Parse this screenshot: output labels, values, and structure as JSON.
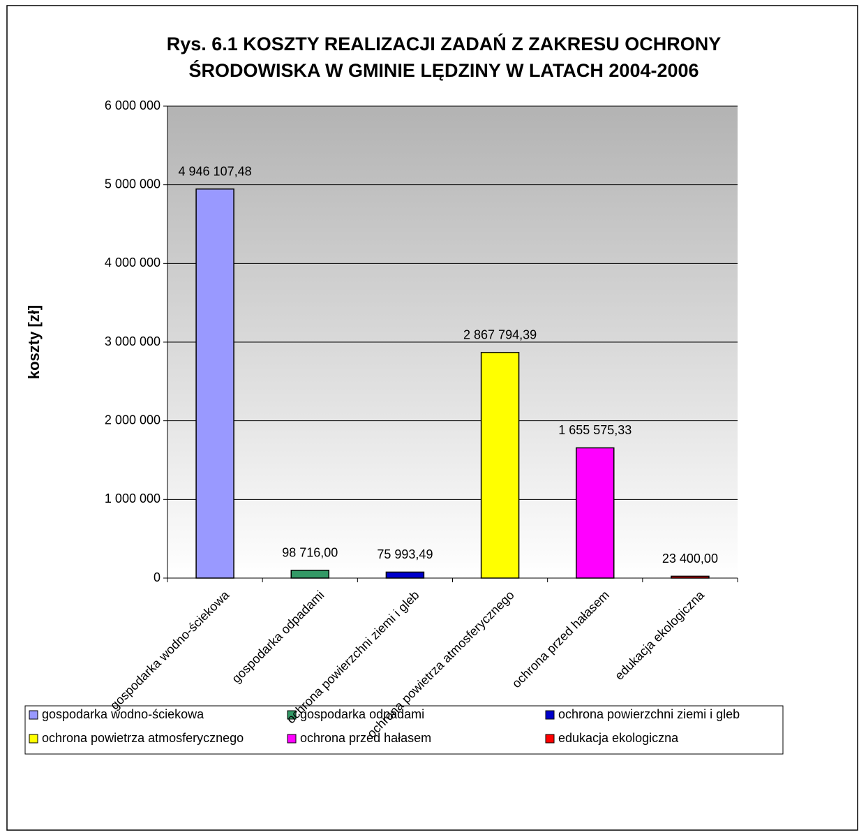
{
  "chart_data": {
    "type": "bar",
    "title": [
      "Rys. 6.1 KOSZTY REALIZACJI ZADAŃ Z ZAKRESU OCHRONY",
      "ŚRODOWISKA W GMINIE LĘDZINY W LATACH 2004-2006"
    ],
    "y_label": "koszty [zł]",
    "categories": [
      "gospodarka wodno-ściekowa",
      "gospodarka odpadami",
      "ochrona powierzchni ziemi i gleb",
      "ochrona powietrza atmosferycznego",
      "ochrona przed hałasem",
      "edukacja ekologiczna"
    ],
    "values": [
      4946107.48,
      98716,
      75993.49,
      2867794.39,
      1655575.33,
      23400
    ],
    "value_labels": [
      "4 946 107,48",
      "98 716,00",
      "75 993,49",
      "2 867 794,39",
      "1 655 575,33",
      "23 400,00"
    ],
    "colors": [
      "#9999ff",
      "#339966",
      "#0000cc",
      "#ffff00",
      "#ff00ff",
      "#ff0000"
    ],
    "ylim": [
      0,
      6000000
    ],
    "yticks": [
      0,
      {
        "value": 1000000,
        "label": "1 000 000"
      },
      {
        "value": 2000000,
        "label": "2 000 000"
      },
      {
        "value": 3000000,
        "label": "3 000 000"
      },
      {
        "value": 4000000,
        "label": "4 000 000"
      },
      {
        "value": 5000000,
        "label": "5 000 000"
      },
      {
        "value": 6000000,
        "label": "6 000 000"
      }
    ],
    "grid": true,
    "legend": "bottom"
  }
}
